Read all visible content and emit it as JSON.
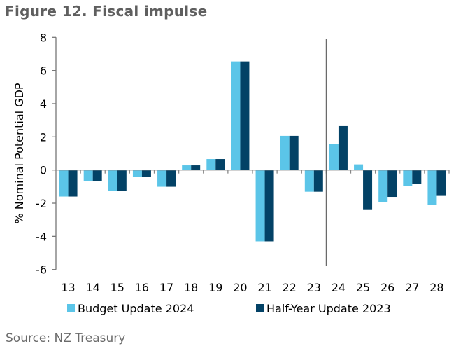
{
  "title": "Figure 12. Fiscal impulse",
  "source": "Source: NZ Treasury",
  "chart_data": {
    "type": "bar",
    "title": "Figure 12. Fiscal impulse",
    "xlabel": "",
    "ylabel": "%  Nominal Potential GDP",
    "ylim": [
      -6,
      8
    ],
    "yticks": [
      8,
      6,
      4,
      2,
      0,
      -2,
      -4,
      -6
    ],
    "categories": [
      "13",
      "14",
      "15",
      "16",
      "17",
      "18",
      "19",
      "20",
      "21",
      "22",
      "23",
      "24",
      "25",
      "26",
      "27",
      "28"
    ],
    "series": [
      {
        "name": "Budget Update 2024",
        "color": "#5bc5e8",
        "values": [
          -1.6,
          -0.68,
          -1.27,
          -0.42,
          -1.01,
          0.28,
          0.66,
          6.55,
          -4.3,
          2.06,
          -1.31,
          1.55,
          0.34,
          -1.94,
          -0.96,
          -2.11
        ]
      },
      {
        "name": "Half-Year Update 2023",
        "color": "#034266",
        "values": [
          -1.6,
          -0.68,
          -1.27,
          -0.42,
          -1.01,
          0.28,
          0.66,
          6.55,
          -4.3,
          2.06,
          -1.31,
          2.65,
          -2.41,
          -1.62,
          -0.82,
          -1.56
        ]
      }
    ],
    "forecast_divider_after": "23",
    "legend_position": "bottom",
    "grid": false
  }
}
